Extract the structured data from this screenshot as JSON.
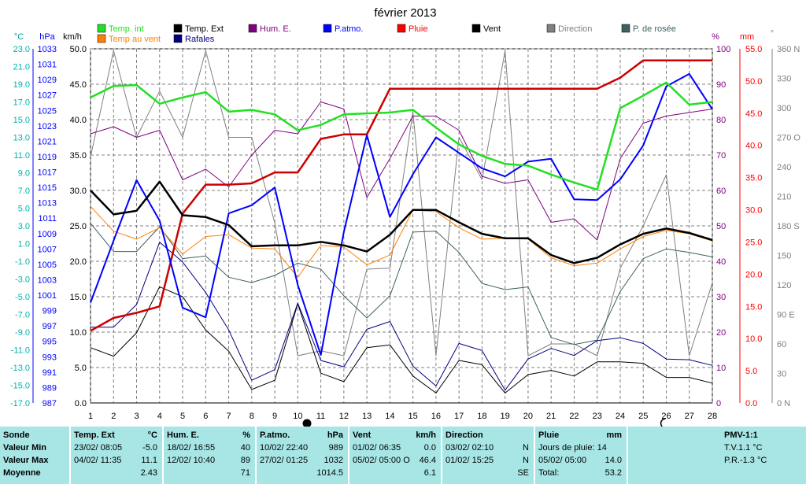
{
  "title": "février 2013",
  "axis_units": {
    "temp": "°C",
    "press": "hPa",
    "wind": "km/h",
    "hum": "%",
    "rain": "mm",
    "dir": "°"
  },
  "legend": [
    {
      "label": "Temp. int",
      "color": "#22e022"
    },
    {
      "label": "Temp. Ext",
      "color": "#000000"
    },
    {
      "label": "Hum. E.",
      "color": "#800080"
    },
    {
      "label": "P.atmo.",
      "color": "#0000ff"
    },
    {
      "label": "Pluie",
      "color": "#ff0000"
    },
    {
      "label": "Vent",
      "color": "#000000"
    },
    {
      "label": "Direction",
      "color": "#808080"
    },
    {
      "label": "P. de rosée",
      "color": "#406060"
    },
    {
      "label": "Temp au vent",
      "color": "#ff8000"
    },
    {
      "label": "Rafales",
      "color": "#000080"
    }
  ],
  "chart_data": {
    "type": "line",
    "title": "février 2013",
    "x": [
      1,
      2,
      3,
      4,
      5,
      6,
      7,
      8,
      9,
      10,
      11,
      12,
      13,
      14,
      15,
      16,
      17,
      18,
      19,
      20,
      21,
      22,
      23,
      24,
      25,
      26,
      27,
      28
    ],
    "xlim": [
      1,
      28
    ],
    "axes": {
      "temp": {
        "label": "°C",
        "ticks": [
          "23.0",
          "21.0",
          "19.0",
          "17.0",
          "15.0",
          "13.0",
          "11.0",
          "9.0",
          "7.0",
          "5.0",
          "3.0",
          "1.0",
          "-1.0",
          "-3.0",
          "-5.0",
          "-7.0",
          "-9.0",
          "-11.0",
          "-13.0",
          "-15.0",
          "-17.0"
        ]
      },
      "press": {
        "label": "hPa",
        "ticks": [
          "1033",
          "1031",
          "1029",
          "1027",
          "1025",
          "1023",
          "1021",
          "1019",
          "1017",
          "1015",
          "1013",
          "1011",
          "1009",
          "1007",
          "1005",
          "1003",
          "1001",
          "999",
          "997",
          "995",
          "993",
          "991",
          "989",
          "987"
        ]
      },
      "wind": {
        "label": "km/h",
        "ticks": [
          "50.0",
          "45.0",
          "40.0",
          "35.0",
          "30.0",
          "25.0",
          "20.0",
          "15.0",
          "10.0",
          "5.0",
          "0.0"
        ],
        "ylim": [
          0,
          50
        ]
      },
      "hum": {
        "label": "%",
        "ticks": [
          "100",
          "90",
          "80",
          "70",
          "60",
          "50",
          "40",
          "30",
          "20",
          "10",
          "0"
        ],
        "ylim": [
          0,
          100
        ]
      },
      "rain": {
        "label": "mm",
        "ticks": [
          "55.0",
          "50.0",
          "45.0",
          "40.0",
          "35.0",
          "30.0",
          "25.0",
          "20.0",
          "15.0",
          "10.0",
          "5.0",
          "0.0"
        ],
        "ylim": [
          0,
          55
        ]
      },
      "dir": {
        "label": "°",
        "ticks": [
          "360 N",
          "330",
          "300",
          "270 O",
          "240",
          "210",
          "180 S",
          "150",
          "120",
          "90 E",
          "60",
          "30",
          "0 N"
        ],
        "ylim": [
          0,
          360
        ]
      }
    },
    "grid": true,
    "series": [
      {
        "name": "Temp. int",
        "axis": "temp",
        "color": "#22e022",
        "width": 2.5,
        "values": [
          17.5,
          18.8,
          18.9,
          16.8,
          17.5,
          18.1,
          15.9,
          16.1,
          15.6,
          13.8,
          14.4,
          15.6,
          15.7,
          15.8,
          16.1,
          14.1,
          12.2,
          10.9,
          10.0,
          9.8,
          8.8,
          7.9,
          7.1,
          16.3,
          17.7,
          19.2,
          16.7,
          17.0
        ]
      },
      {
        "name": "Temp. Ext",
        "axis": "temp",
        "color": "#000000",
        "width": 2.5,
        "values": [
          7.0,
          4.3,
          4.7,
          8.0,
          4.2,
          4.0,
          3.1,
          0.7,
          0.8,
          0.8,
          1.2,
          0.8,
          0.1,
          2.0,
          4.8,
          4.8,
          3.4,
          2.1,
          1.6,
          1.6,
          -0.3,
          -1.2,
          -0.6,
          0.9,
          2.1,
          2.7,
          2.2,
          1.4
        ]
      },
      {
        "name": "Temp au vent",
        "axis": "temp",
        "color": "#ff8000",
        "width": 1,
        "values": [
          5.2,
          2.4,
          1.5,
          2.8,
          -0.2,
          1.8,
          2.0,
          0.5,
          0.4,
          -2.8,
          0.8,
          0.6,
          -1.4,
          -0.3,
          4.8,
          4.6,
          2.8,
          1.5,
          1.6,
          1.5,
          -0.6,
          -1.5,
          -1.2,
          0.4,
          1.8,
          2.5,
          2.1,
          1.3
        ]
      },
      {
        "name": "P. de rosée",
        "axis": "temp",
        "color": "#406060",
        "width": 1,
        "values": [
          3.3,
          0.1,
          0.1,
          2.9,
          -0.7,
          -0.4,
          -2.8,
          -3.4,
          -2.6,
          -1.2,
          -1.9,
          -4.9,
          -7.4,
          -4.9,
          2.3,
          2.4,
          0.0,
          -3.5,
          -4.2,
          -3.9,
          -9.6,
          -10.4,
          -9.9,
          -4.4,
          -0.7,
          0.4,
          0.0,
          -0.5
        ]
      },
      {
        "name": "Hum. E.",
        "axis": "hum",
        "color": "#800080",
        "width": 1,
        "values": [
          76,
          78,
          75,
          77,
          63,
          66,
          61,
          70,
          77,
          76,
          85,
          83,
          58,
          69,
          81,
          81,
          77,
          64,
          62,
          63,
          51,
          52,
          46,
          69,
          79,
          81,
          82,
          83
        ]
      },
      {
        "name": "P.atmo.",
        "axis": "press",
        "color": "#0000ff",
        "width": 2,
        "values": [
          1000.6,
          1009.0,
          1017.2,
          1011.7,
          999.9,
          998.6,
          1012.7,
          1013.8,
          1016.2,
          1003.0,
          993.5,
          1010.2,
          1023.3,
          1012.2,
          1018.0,
          1023.0,
          1020.9,
          1018.8,
          1017.7,
          1019.7,
          1020.1,
          1014.6,
          1014.5,
          1017.3,
          1021.9,
          1029.9,
          1031.6,
          1026.8
        ]
      },
      {
        "name": "Pluie",
        "axis": "rain",
        "color": "#cc0000",
        "width": 2.5,
        "values": [
          11.2,
          13.2,
          14.0,
          15.0,
          29.4,
          33.9,
          33.9,
          34.1,
          35.8,
          35.8,
          41.0,
          41.7,
          41.7,
          48.8,
          48.8,
          48.8,
          48.8,
          48.8,
          48.8,
          48.8,
          48.8,
          48.8,
          48.8,
          50.5,
          53.2,
          53.2,
          53.2,
          53.2
        ]
      },
      {
        "name": "Vent",
        "axis": "wind",
        "color": "#000000",
        "width": 1,
        "values": [
          7.8,
          6.6,
          9.9,
          16.4,
          15.0,
          10.3,
          7.3,
          1.9,
          3.2,
          14.0,
          4.2,
          3.0,
          7.8,
          8.2,
          3.8,
          1.4,
          6.0,
          5.4,
          1.4,
          4.0,
          4.6,
          3.8,
          5.8,
          5.8,
          5.6,
          3.6,
          3.6,
          2.8
        ]
      },
      {
        "name": "Rafales",
        "axis": "wind",
        "color": "#000080",
        "width": 1,
        "values": [
          10.7,
          10.7,
          13.9,
          22.7,
          19.9,
          15.6,
          10.3,
          3.2,
          4.7,
          14.1,
          6.0,
          5.1,
          10.4,
          11.5,
          5.2,
          2.4,
          8.4,
          7.4,
          1.8,
          6.2,
          7.7,
          6.7,
          8.8,
          9.2,
          8.4,
          6.2,
          6.1,
          5.3
        ]
      },
      {
        "name": "Direction",
        "axis": "dir",
        "color": "#808080",
        "width": 1,
        "values": [
          250,
          358,
          270,
          317,
          270,
          358,
          270,
          270,
          183,
          48,
          53,
          48,
          136,
          137,
          296,
          48,
          270,
          227,
          358,
          48,
          60,
          60,
          48,
          137,
          180,
          232,
          48,
          122
        ]
      }
    ],
    "x_markers": [
      {
        "x": 10.4,
        "symbol": "new-moon"
      },
      {
        "x": 25.9,
        "symbol": "first-quarter"
      }
    ]
  },
  "stats": {
    "sonde": {
      "title": "Sonde",
      "rows": [
        "Valeur Min",
        "Valeur Max",
        "Moyenne"
      ]
    },
    "temp": {
      "title": "Temp. Ext",
      "unit": "°C",
      "min_date": "23/02/  08:05",
      "min_val": "-5.0",
      "max_date": "04/02/  11:35",
      "max_val": "11.1",
      "avg": "2.43"
    },
    "hum": {
      "title": "Hum. E.",
      "unit": "%",
      "min_date": "18/02/  16:55",
      "min_val": "40",
      "max_date": "12/02/  10:40",
      "max_val": "89",
      "avg": "71"
    },
    "press": {
      "title": "P.atmo.",
      "unit": "hPa",
      "min_date": "10/02/  22:40",
      "min_val": "989",
      "max_date": "27/02/  01:25",
      "max_val": "1032",
      "avg": "1014.5"
    },
    "wind": {
      "title": "Vent",
      "unit": "km/h",
      "min_date": "01/02/  06:35",
      "min_val": "0.0",
      "max_date": "05/02/  05:00 O",
      "max_val": "46.4",
      "avg": "6.1"
    },
    "dir": {
      "title": "Direction",
      "min_date": "03/02/  02:10",
      "min_val": "N",
      "max_date": "01/02/  15:25",
      "max_val": "N",
      "avg": "SE"
    },
    "rain": {
      "title": "Pluie",
      "unit": "mm",
      "row1": "Jours de pluie: 14",
      "row2_date": "05/02/  05:00",
      "row2_val": "14.0",
      "row3_label": "Total:",
      "row3_val": "53.2"
    },
    "pmv": {
      "title": "PMV-1:1",
      "row1": "T.V.1.1 °C",
      "row2": "P.R.-1.3 °C"
    }
  }
}
